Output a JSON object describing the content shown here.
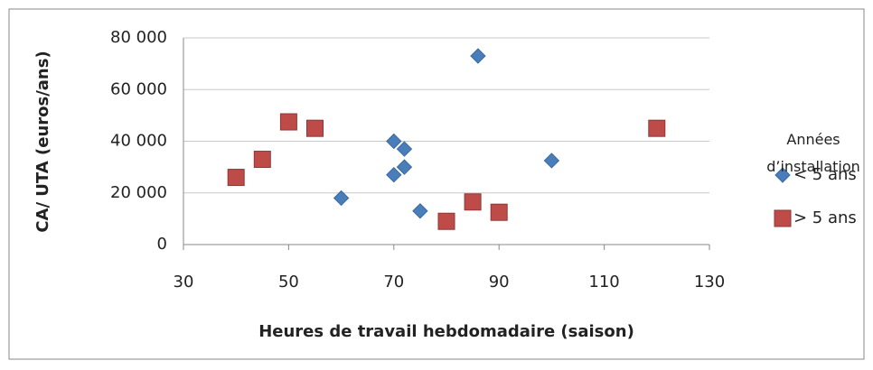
{
  "chart_data": {
    "type": "scatter",
    "x_label": "Heures de travail hebdomadaire (saison)",
    "y_label": "CA/ UTA (euros/ans)",
    "legend_title": "Années d’installation",
    "xlim": [
      30,
      130
    ],
    "xticks": [
      30,
      50,
      70,
      90,
      110,
      130
    ],
    "ylim": [
      0,
      80000
    ],
    "yticks": [
      0,
      {
        "value": 20000,
        "label": "20 000"
      },
      {
        "value": 40000,
        "label": "40 000"
      },
      {
        "value": 60000,
        "label": "60 000"
      },
      {
        "value": 80000,
        "label": "80 000"
      }
    ],
    "grid": true,
    "series": [
      {
        "name": "< 5 ans",
        "color": "#4a7ebb",
        "marker": "diamond",
        "x": [
          86,
          70,
          72,
          70,
          72,
          60,
          75,
          100
        ],
        "values": [
          73000,
          40000,
          37000,
          27000,
          30000,
          18000,
          13000,
          32500
        ]
      },
      {
        "name": "> 5 ans",
        "color": "#be4b48",
        "marker": "square",
        "x": [
          40,
          45,
          50,
          55,
          80,
          85,
          90,
          120
        ],
        "values": [
          26000,
          33000,
          47500,
          45000,
          9000,
          16500,
          12500,
          45000
        ]
      }
    ]
  }
}
